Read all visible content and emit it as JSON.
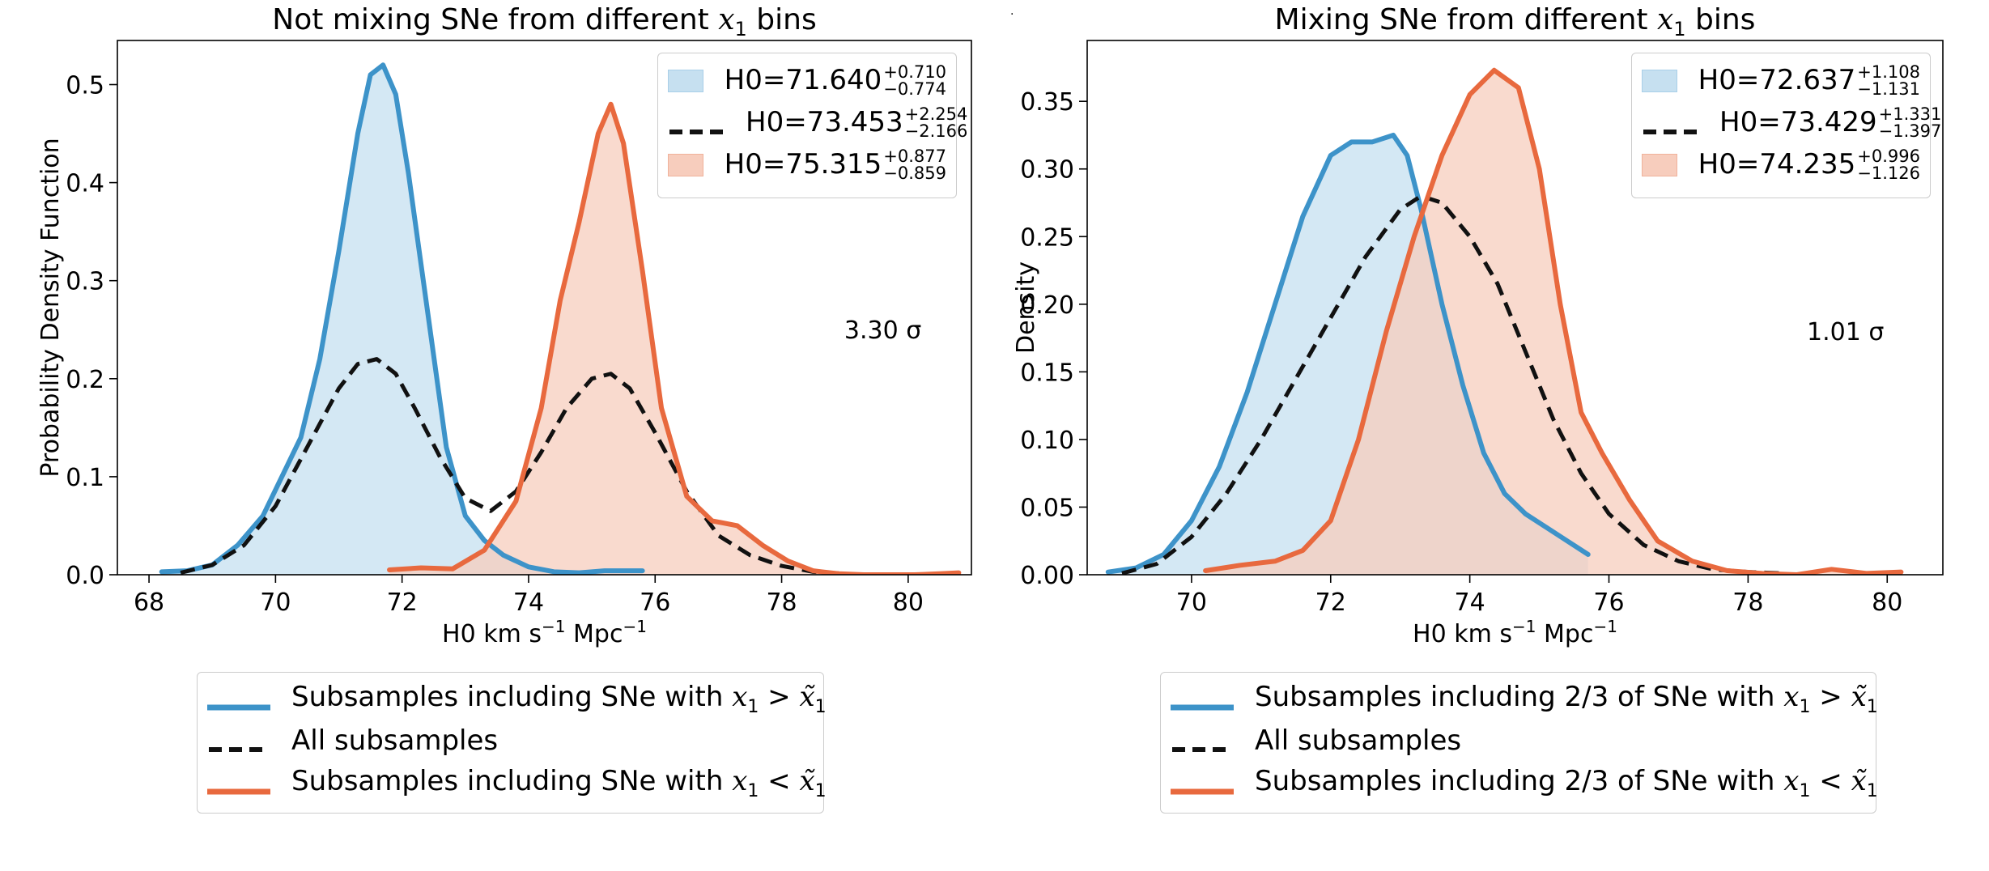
{
  "chart_data": [
    {
      "type": "line",
      "title": "Not mixing SNe from different x1 bins",
      "title_parts": {
        "pre": "Not mixing SNe from different ",
        "var": "x",
        "sub": "1",
        "post": " bins"
      },
      "xlabel_parts": {
        "a": "H0 km s",
        "sup1": "−1",
        "b": " Mpc",
        "sup2": "−1"
      },
      "ylabel": "Probability Density Function",
      "xlim": [
        67.5,
        81.0
      ],
      "ylim": [
        0.0,
        0.545
      ],
      "xticks": [
        68,
        70,
        72,
        74,
        76,
        78,
        80
      ],
      "yticks": [
        0.0,
        0.1,
        0.2,
        0.3,
        0.4,
        0.5
      ],
      "ytick_labels": [
        "0.0",
        "0.1",
        "0.2",
        "0.3",
        "0.4",
        "0.5"
      ],
      "annotation": "3.30 σ",
      "annotation_pos": [
        79.6,
        0.25
      ],
      "legend_inner": [
        {
          "key": "blue",
          "base": "H0=71.640",
          "sup": "+0.710",
          "sub": "−0.774"
        },
        {
          "key": "all",
          "base": "H0=73.453",
          "sup": "+2.254",
          "sub": "−2.166"
        },
        {
          "key": "orange",
          "base": "H0=75.315",
          "sup": "+0.877",
          "sub": "−0.859"
        }
      ],
      "legend_outer": [
        {
          "key": "blue",
          "pre": "Subsamples including SNe with "
        },
        {
          "key": "all",
          "pre": "All subsamples"
        },
        {
          "key": "orange",
          "pre": "Subsamples including SNe with "
        }
      ],
      "series": [
        {
          "name": "Subsamples including SNe with x1 > x̃1",
          "color": "#3d93c9",
          "fill": true,
          "x": [
            68.2,
            68.6,
            69.0,
            69.4,
            69.8,
            70.1,
            70.4,
            70.7,
            71.0,
            71.3,
            71.5,
            71.7,
            71.9,
            72.1,
            72.4,
            72.7,
            73.0,
            73.3,
            73.6,
            74.0,
            74.4,
            74.8,
            75.2,
            75.5,
            75.8
          ],
          "y": [
            0.003,
            0.004,
            0.01,
            0.03,
            0.06,
            0.1,
            0.14,
            0.22,
            0.33,
            0.45,
            0.51,
            0.52,
            0.49,
            0.41,
            0.27,
            0.13,
            0.06,
            0.035,
            0.02,
            0.008,
            0.003,
            0.002,
            0.004,
            0.004,
            0.004
          ]
        },
        {
          "name": "All subsamples",
          "color": "#111111",
          "fill": false,
          "x": [
            68.5,
            69.0,
            69.5,
            70.0,
            70.5,
            71.0,
            71.3,
            71.6,
            71.9,
            72.2,
            72.6,
            73.0,
            73.4,
            73.8,
            74.2,
            74.6,
            75.0,
            75.3,
            75.6,
            76.0,
            76.5,
            77.0,
            77.5,
            78.0,
            78.5,
            79.0
          ],
          "y": [
            0.002,
            0.01,
            0.03,
            0.07,
            0.13,
            0.19,
            0.215,
            0.22,
            0.205,
            0.17,
            0.12,
            0.078,
            0.065,
            0.085,
            0.125,
            0.17,
            0.2,
            0.205,
            0.19,
            0.145,
            0.085,
            0.04,
            0.02,
            0.009,
            0.003,
            0.001
          ]
        },
        {
          "name": "Subsamples including SNe with x1 < x̃1",
          "color": "#e8693e",
          "fill": true,
          "x": [
            71.8,
            72.3,
            72.8,
            73.3,
            73.8,
            74.2,
            74.5,
            74.8,
            75.1,
            75.3,
            75.5,
            75.8,
            76.1,
            76.5,
            76.9,
            77.3,
            77.7,
            78.1,
            78.5,
            78.9,
            79.3,
            79.7,
            80.1,
            80.5,
            80.8
          ],
          "y": [
            0.005,
            0.007,
            0.006,
            0.025,
            0.075,
            0.17,
            0.28,
            0.36,
            0.45,
            0.48,
            0.44,
            0.31,
            0.17,
            0.08,
            0.055,
            0.05,
            0.03,
            0.014,
            0.004,
            0.001,
            0.0,
            0.0,
            0.0,
            0.001,
            0.002
          ]
        }
      ]
    },
    {
      "type": "line",
      "title": "Mixing SNe from different x1 bins",
      "title_parts": {
        "pre": "Mixing SNe from different ",
        "var": "x",
        "sub": "1",
        "post": " bins"
      },
      "xlabel_parts": {
        "a": "H0 km s",
        "sup1": "−1",
        "b": " Mpc",
        "sup2": "−1"
      },
      "ylabel": "Density",
      "xlim": [
        68.5,
        80.8
      ],
      "ylim": [
        0.0,
        0.395
      ],
      "xticks": [
        70,
        72,
        74,
        76,
        78,
        80
      ],
      "yticks": [
        0.0,
        0.05,
        0.1,
        0.15,
        0.2,
        0.25,
        0.3,
        0.35
      ],
      "ytick_labels": [
        "0.00",
        "0.05",
        "0.10",
        "0.15",
        "0.20",
        "0.25",
        "0.30",
        "0.35"
      ],
      "annotation": "1.01 σ",
      "annotation_pos": [
        79.4,
        0.18
      ],
      "legend_inner": [
        {
          "key": "blue",
          "base": "H0=72.637",
          "sup": "+1.108",
          "sub": "−1.131"
        },
        {
          "key": "all",
          "base": "H0=73.429",
          "sup": "+1.331",
          "sub": "−1.397"
        },
        {
          "key": "orange",
          "base": "H0=74.235",
          "sup": "+0.996",
          "sub": "−1.126"
        }
      ],
      "legend_outer": [
        {
          "key": "blue",
          "pre": "Subsamples including 2/3 of SNe with "
        },
        {
          "key": "all",
          "pre": "All subsamples"
        },
        {
          "key": "orange",
          "pre": "Subsamples including 2/3 of SNe with "
        }
      ],
      "series": [
        {
          "name": "Subsamples including 2/3 of SNe with x1 > x̃1",
          "color": "#3d93c9",
          "fill": true,
          "x": [
            68.8,
            69.2,
            69.6,
            70.0,
            70.4,
            70.8,
            71.2,
            71.6,
            72.0,
            72.3,
            72.6,
            72.9,
            73.1,
            73.3,
            73.6,
            73.9,
            74.2,
            74.5,
            74.8,
            75.1,
            75.4,
            75.7
          ],
          "y": [
            0.002,
            0.005,
            0.015,
            0.04,
            0.08,
            0.135,
            0.2,
            0.265,
            0.31,
            0.32,
            0.32,
            0.325,
            0.31,
            0.27,
            0.2,
            0.14,
            0.09,
            0.06,
            0.045,
            0.035,
            0.025,
            0.015
          ]
        },
        {
          "name": "All subsamples",
          "color": "#111111",
          "fill": false,
          "x": [
            69.0,
            69.5,
            70.0,
            70.5,
            71.0,
            71.5,
            72.0,
            72.5,
            73.0,
            73.3,
            73.6,
            74.0,
            74.4,
            74.8,
            75.2,
            75.6,
            76.0,
            76.5,
            77.0,
            77.5,
            78.0,
            78.5
          ],
          "y": [
            0.001,
            0.008,
            0.028,
            0.06,
            0.1,
            0.145,
            0.19,
            0.235,
            0.27,
            0.28,
            0.275,
            0.25,
            0.215,
            0.165,
            0.115,
            0.075,
            0.045,
            0.022,
            0.01,
            0.004,
            0.002,
            0.001
          ]
        },
        {
          "name": "Subsamples including 2/3 of SNe with x1 < x̃1",
          "color": "#e8693e",
          "fill": true,
          "x": [
            70.2,
            70.7,
            71.2,
            71.6,
            72.0,
            72.4,
            72.8,
            73.2,
            73.6,
            74.0,
            74.35,
            74.7,
            75.0,
            75.3,
            75.6,
            75.9,
            76.3,
            76.7,
            77.2,
            77.7,
            78.2,
            78.7,
            79.2,
            79.7,
            80.2
          ],
          "y": [
            0.003,
            0.007,
            0.01,
            0.018,
            0.04,
            0.1,
            0.18,
            0.25,
            0.31,
            0.355,
            0.373,
            0.36,
            0.3,
            0.2,
            0.12,
            0.09,
            0.055,
            0.025,
            0.01,
            0.003,
            0.001,
            0.0,
            0.004,
            0.001,
            0.002
          ]
        }
      ]
    }
  ]
}
